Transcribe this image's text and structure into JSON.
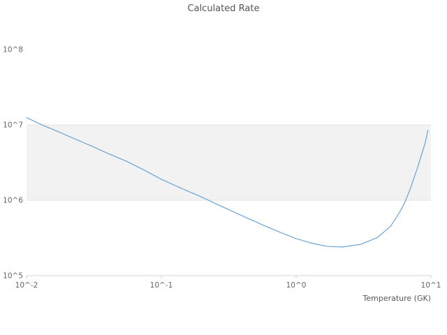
{
  "chart_data": {
    "type": "line",
    "title": "Calculated Rate",
    "xlabel": "Temperature (GK)",
    "ylabel": "",
    "x_scale": "log",
    "y_scale": "log",
    "xlim": [
      0.01,
      10
    ],
    "ylim": [
      100000,
      100000000
    ],
    "grid": "horizontal-decade-lines",
    "legend": "none",
    "band": {
      "y_min": 1000000,
      "y_max": 10000000,
      "color": "#f2f2f2"
    },
    "line_color": "#5b9bd5",
    "x_ticks": [
      {
        "label": "10^-2",
        "value": 0.01
      },
      {
        "label": "10^-1",
        "value": 0.1
      },
      {
        "label": "10^0",
        "value": 1
      },
      {
        "label": "10^1",
        "value": 10
      }
    ],
    "y_ticks": [
      {
        "label": "10^5",
        "value": 100000
      },
      {
        "label": "10^6",
        "value": 1000000
      },
      {
        "label": "10^7",
        "value": 10000000
      },
      {
        "label": "10^8",
        "value": 100000000
      }
    ],
    "series": [
      {
        "name": "calculated-rate",
        "x": [
          0.01,
          0.013,
          0.017,
          0.022,
          0.03,
          0.04,
          0.055,
          0.075,
          0.1,
          0.14,
          0.2,
          0.28,
          0.4,
          0.55,
          0.75,
          1.0,
          1.3,
          1.7,
          2.2,
          3.0,
          4.0,
          5.0,
          5.5,
          6.0,
          6.5,
          7.0,
          7.5,
          8.0,
          8.5,
          9.0,
          9.5
        ],
        "y": [
          12500000,
          10000000,
          8200000,
          6700000,
          5300000,
          4200000,
          3300000,
          2500000,
          1900000,
          1450000,
          1100000,
          830000,
          620000,
          480000,
          380000,
          310000,
          270000,
          245000,
          240000,
          260000,
          320000,
          450000,
          580000,
          750000,
          1000000,
          1400000,
          2000000,
          2800000,
          4000000,
          5500000,
          8500000
        ]
      }
    ]
  }
}
